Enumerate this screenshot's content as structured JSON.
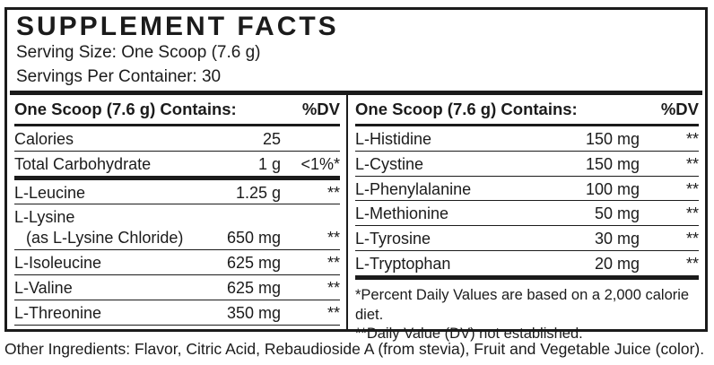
{
  "panel": {
    "title": "SUPPLEMENT FACTS",
    "serving_size": "Serving Size: One Scoop (7.6 g)",
    "servings_per_container": "Servings Per Container: 30"
  },
  "columns": [
    {
      "header": {
        "contains": "One Scoop (7.6 g) Contains:",
        "dv_label": "%DV"
      },
      "rows": [
        {
          "name": "Calories",
          "amount": "25",
          "dv": ""
        },
        {
          "name": "Total Carbohydrate",
          "amount": "1 g",
          "dv": "<1%*",
          "thick_divider": true
        },
        {
          "name": "L-Leucine",
          "amount": "1.25 g",
          "dv": "**"
        },
        {
          "name": "L-Lysine",
          "sub_name": "(as L-Lysine Chloride)",
          "amount": "650 mg",
          "dv": "**"
        },
        {
          "name": "L-Isoleucine",
          "amount": "625 mg",
          "dv": "**"
        },
        {
          "name": "L-Valine",
          "amount": "625 mg",
          "dv": "**"
        },
        {
          "name": "L-Threonine",
          "amount": "350 mg",
          "dv": "**"
        }
      ],
      "footnotes": []
    },
    {
      "header": {
        "contains": "One Scoop (7.6 g) Contains:",
        "dv_label": "%DV"
      },
      "rows": [
        {
          "name": "L-Histidine",
          "amount": "150 mg",
          "dv": "**"
        },
        {
          "name": "L-Cystine",
          "amount": "150 mg",
          "dv": "**"
        },
        {
          "name": "L-Phenylalanine",
          "amount": "100 mg",
          "dv": "**"
        },
        {
          "name": "L-Methionine",
          "amount": "50 mg",
          "dv": "**"
        },
        {
          "name": "L-Tyrosine",
          "amount": "30 mg",
          "dv": "**"
        },
        {
          "name": "L-Tryptophan",
          "amount": "20 mg",
          "dv": "**",
          "thick_divider": true
        }
      ],
      "footnotes": [
        "*Percent Daily Values are based on a 2,000 calorie diet.",
        "**Daily Value (DV) not established."
      ]
    }
  ],
  "other_ingredients": "Other Ingredients: Flavor, Citric Acid, Rebaudioside A (from stevia), Fruit and Vegetable Juice (color).",
  "colors": {
    "ink": "#1b1b1b",
    "background": "#ffffff"
  }
}
